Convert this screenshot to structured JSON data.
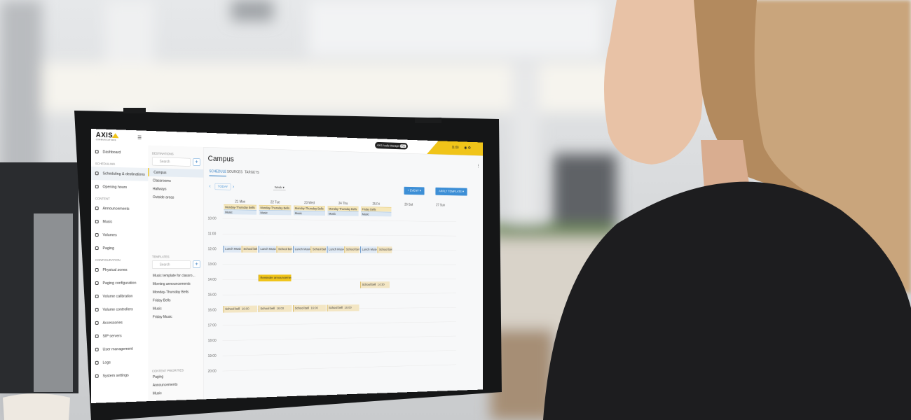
{
  "header": {
    "logo": "AXIS",
    "logo_sub": "COMMUNICATIONS",
    "product": "AXIS Audio Manager",
    "badge": "Pro",
    "time": "11:00"
  },
  "nav": {
    "top": "Dashboard",
    "sections": [
      {
        "title": "SCHEDULING",
        "items": [
          "Scheduling & destinations",
          "Opening hours"
        ]
      },
      {
        "title": "CONTENT",
        "items": [
          "Announcements",
          "Music",
          "Volumes",
          "Paging"
        ]
      },
      {
        "title": "CONFIGURATION",
        "items": [
          "Physical zones",
          "Paging configuration",
          "Volume calibration",
          "Volume controllers",
          "Accessories",
          "SIP servers",
          "User management",
          "Logs",
          "System settings"
        ]
      }
    ]
  },
  "destinations": {
    "title": "DESTINATIONS",
    "search": "Search",
    "items": [
      "Campus",
      "Classrooms",
      "Hallways",
      "Outside areas"
    ]
  },
  "templates": {
    "title": "TEMPLATES",
    "search": "Search",
    "items": [
      "Music template for classro...",
      "Morning announcements",
      "Monday-Thursday Bells",
      "Friday Bells",
      "Music",
      "Friday Music"
    ]
  },
  "priorities": {
    "title": "CONTENT PRIORITIES",
    "items": [
      "Paging",
      "Announcements",
      "Music"
    ]
  },
  "main": {
    "title": "Campus",
    "tabs": [
      "SCHEDULE",
      "SOURCES",
      "TARGETS"
    ],
    "today": "TODAY",
    "view": "Week",
    "add_event": "EVENT",
    "apply_template": "APPLY TEMPLATE",
    "hours": [
      "10:00",
      "11:00",
      "12:00",
      "13:00",
      "14:00",
      "15:00",
      "16:00",
      "17:00",
      "18:00",
      "19:00",
      "20:00"
    ],
    "days": [
      {
        "label": "21 Mon",
        "all_day": [
          "Monday-Thursday Bells",
          "Music"
        ],
        "events": [
          {
            "title": "Lunch Music"
          },
          {
            "title": "School bell"
          },
          {
            "title": "School bell",
            "time": "16:00"
          }
        ]
      },
      {
        "label": "22 Tue",
        "all_day": [
          "Monday-Thursday Bells",
          "Music"
        ],
        "events": [
          {
            "title": "Lunch Music"
          },
          {
            "title": "School bell"
          },
          {
            "title": "Reminder announcement"
          },
          {
            "title": "School bell",
            "time": "16:00"
          }
        ]
      },
      {
        "label": "23 Wed",
        "all_day": [
          "Monday-Thursday Bells",
          "Music"
        ],
        "events": [
          {
            "title": "Lunch Music"
          },
          {
            "title": "School bell"
          },
          {
            "title": "School bell",
            "time": "16:00"
          }
        ]
      },
      {
        "label": "24 Thu",
        "all_day": [
          "Monday-Thursday Bells",
          "Music"
        ],
        "events": [
          {
            "title": "Lunch Music"
          },
          {
            "title": "School bell"
          },
          {
            "title": "School bell",
            "time": "16:00"
          }
        ]
      },
      {
        "label": "25 Fri",
        "all_day": [
          "Friday Bells",
          "Music"
        ],
        "events": [
          {
            "title": "Lunch Music"
          },
          {
            "title": "School bell"
          },
          {
            "title": "School bell",
            "time": "14:30"
          }
        ]
      },
      {
        "label": "26 Sat",
        "all_day": [],
        "events": []
      },
      {
        "label": "27 Sun",
        "all_day": [],
        "events": []
      }
    ]
  }
}
